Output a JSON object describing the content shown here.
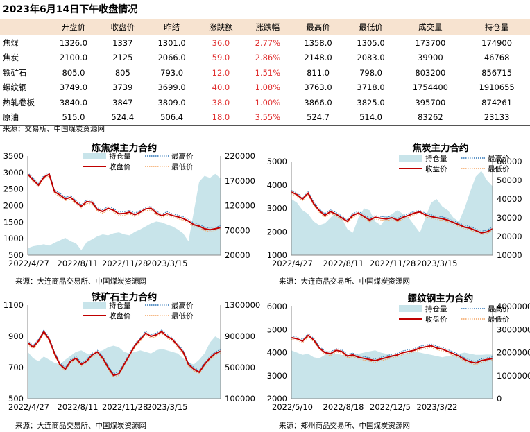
{
  "title": "2023年6月14日下午收盘情况",
  "table": {
    "headers": [
      "",
      "开盘价",
      "收盘价",
      "昨结",
      "涨跌额",
      "涨跌幅",
      "最高价",
      "最低价",
      "成交量",
      "持仓量"
    ],
    "rows": [
      {
        "name": "焦煤",
        "open": "1326.0",
        "close": "1337",
        "prev": "1301.0",
        "chg": "36.0",
        "pct": "2.77%",
        "high": "1358.0",
        "low": "1305.0",
        "vol": "173700",
        "oi": "174900"
      },
      {
        "name": "焦炭",
        "open": "2100.0",
        "close": "2125",
        "prev": "2066.0",
        "chg": "59.0",
        "pct": "2.86%",
        "high": "2148.0",
        "low": "2083.0",
        "vol": "39900",
        "oi": "46768"
      },
      {
        "name": "铁矿石",
        "open": "805.0",
        "close": "805",
        "prev": "793.0",
        "chg": "12.0",
        "pct": "1.51%",
        "high": "811.0",
        "low": "798.0",
        "vol": "803200",
        "oi": "856715"
      },
      {
        "name": "螺纹钢",
        "open": "3749.0",
        "close": "3739",
        "prev": "3699.0",
        "chg": "40.0",
        "pct": "1.08%",
        "high": "3763.0",
        "low": "3718.0",
        "vol": "1754400",
        "oi": "1910655"
      },
      {
        "name": "热轧卷板",
        "open": "3840.0",
        "close": "3847",
        "prev": "3809.0",
        "chg": "38.0",
        "pct": "1.00%",
        "high": "3866.0",
        "low": "3825.0",
        "vol": "395700",
        "oi": "874261"
      },
      {
        "name": "原油",
        "open": "515.0",
        "close": "524.4",
        "prev": "506.4",
        "chg": "18.0",
        "pct": "3.55%",
        "high": "524.7",
        "low": "514.0",
        "vol": "83262",
        "oi": "23133"
      }
    ],
    "source": "来源：交易所、中国煤炭资源网"
  },
  "colors": {
    "oi_fill": "#c8e4ea",
    "close": "#c00000",
    "high": "#2e75b6",
    "low": "#f4a460",
    "change_red": "#e03030",
    "header_bg": "#f7e3d0"
  },
  "chart_data": [
    {
      "type": "line",
      "title": "炼焦煤主力合约",
      "source": "来源：大连商品交易所、中国煤炭资源网",
      "x_ticks": [
        "2022/4/27",
        "2022/8/11",
        "2022/11/28",
        "2023/3/15"
      ],
      "y_left": {
        "min": 500,
        "max": 3500,
        "ticks": [
          500,
          1000,
          1500,
          2000,
          2500,
          3000,
          3500
        ]
      },
      "y_right": {
        "min": 20000,
        "max": 220000,
        "ticks": [
          20000,
          70000,
          120000,
          170000,
          220000
        ]
      },
      "legend": [
        "持仓量",
        "最高价",
        "收盘价",
        "最低价"
      ],
      "series": [
        {
          "name": "收盘价",
          "axis": "left",
          "values": [
            2950,
            2780,
            2620,
            2860,
            2950,
            2420,
            2320,
            2200,
            2250,
            2100,
            1980,
            2120,
            2100,
            1880,
            1820,
            1920,
            1860,
            1750,
            1760,
            1800,
            1720,
            1800,
            1900,
            1920,
            1780,
            1690,
            1760,
            1700,
            1660,
            1610,
            1530,
            1420,
            1380,
            1300,
            1270,
            1300,
            1337
          ]
        },
        {
          "name": "持仓量",
          "axis": "right",
          "values": [
            34000,
            38000,
            40000,
            42000,
            39000,
            45000,
            50000,
            55000,
            48000,
            44000,
            30000,
            46000,
            52000,
            58000,
            62000,
            60000,
            64000,
            66000,
            62000,
            60000,
            67000,
            72000,
            78000,
            84000,
            88000,
            86000,
            82000,
            78000,
            72000,
            64000,
            48000,
            108000,
            168000,
            180000,
            176000,
            184000,
            174900
          ]
        }
      ]
    },
    {
      "type": "line",
      "title": "焦炭主力合约",
      "source": "来源：大连商品交易所、中国煤炭资源网",
      "x_ticks": [
        "2022/4/27",
        "2022/8/11",
        "2022/11/28",
        "2023/3/15"
      ],
      "y_left": {
        "min": 1000,
        "max": 5000,
        "ticks": [
          1000,
          2000,
          3000,
          4000,
          5000
        ]
      },
      "y_right": {
        "min": 10000,
        "max": 60000,
        "ticks": [
          10000,
          20000,
          30000,
          40000,
          50000,
          60000
        ]
      },
      "legend": [
        "持仓量",
        "最高价",
        "收盘价",
        "最低价"
      ],
      "series": [
        {
          "name": "收盘价",
          "axis": "left",
          "values": [
            3700,
            3580,
            3400,
            3650,
            3200,
            2900,
            2700,
            2860,
            2750,
            2600,
            2450,
            2700,
            2800,
            2650,
            2500,
            2620,
            2580,
            2550,
            2600,
            2500,
            2620,
            2700,
            2800,
            2850,
            2720,
            2650,
            2600,
            2560,
            2500,
            2400,
            2300,
            2200,
            2150,
            2050,
            1950,
            2000,
            2125
          ]
        },
        {
          "name": "持仓量",
          "axis": "right",
          "values": [
            40000,
            38000,
            34000,
            32000,
            28000,
            26000,
            27000,
            30000,
            33000,
            30000,
            24000,
            22000,
            30000,
            35000,
            34000,
            28000,
            26000,
            30000,
            32000,
            34000,
            32000,
            30000,
            26000,
            22000,
            30000,
            38000,
            40000,
            36000,
            34000,
            30000,
            28000,
            35000,
            44000,
            52000,
            55000,
            50000,
            46768
          ]
        }
      ]
    },
    {
      "type": "line",
      "title": "铁矿石主力合约",
      "source": "来源：大连商品交易所、中国煤炭资源网",
      "x_ticks": [
        "2022/4/27",
        "2022/8/11",
        "2022/11/28",
        "2023/3/15"
      ],
      "y_left": {
        "min": 500,
        "max": 1100,
        "ticks": [
          500,
          700,
          900,
          1100
        ]
      },
      "y_right": {
        "min": 100000,
        "max": 1300000,
        "ticks": [
          100000,
          500000,
          900000,
          1300000
        ]
      },
      "legend": [
        "持仓量",
        "最高价",
        "收盘价",
        "最低价"
      ],
      "series": [
        {
          "name": "收盘价",
          "axis": "left",
          "values": [
            860,
            830,
            870,
            930,
            880,
            790,
            720,
            690,
            740,
            760,
            720,
            740,
            780,
            800,
            760,
            700,
            650,
            660,
            720,
            780,
            840,
            880,
            920,
            900,
            910,
            930,
            900,
            880,
            840,
            800,
            720,
            690,
            670,
            720,
            760,
            790,
            805
          ]
        },
        {
          "name": "持仓量",
          "axis": "right",
          "values": [
            700000,
            620000,
            580000,
            640000,
            600000,
            560000,
            540000,
            600000,
            650000,
            700000,
            720000,
            680000,
            660000,
            700000,
            720000,
            760000,
            780000,
            760000,
            700000,
            680000,
            700000,
            720000,
            700000,
            680000,
            720000,
            740000,
            720000,
            700000,
            680000,
            620000,
            560000,
            540000,
            600000,
            680000,
            820000,
            900000,
            856715
          ]
        }
      ]
    },
    {
      "type": "line",
      "title": "螺纹钢主力合约",
      "source": "来源：郑州商品交易所、中国煤炭资源网",
      "x_ticks": [
        "2022/5/10",
        "2022/8/18",
        "2022/12/5",
        "2023/3/22"
      ],
      "y_left": {
        "min": 2000,
        "max": 6000,
        "ticks": [
          2000,
          3000,
          4000,
          5000,
          6000
        ]
      },
      "y_right": {
        "min": 0,
        "max": 4000000,
        "ticks": [
          0,
          1000000,
          2000000,
          3000000,
          4000000
        ]
      },
      "legend": [
        "持仓量",
        "最高价",
        "收盘价",
        "最低价"
      ],
      "series": [
        {
          "name": "收盘价",
          "axis": "left",
          "values": [
            4650,
            4600,
            4500,
            4750,
            4550,
            4200,
            4000,
            3950,
            4100,
            4050,
            3850,
            3900,
            3800,
            3750,
            3700,
            3650,
            3720,
            3780,
            3850,
            3900,
            4000,
            4050,
            4100,
            4200,
            4250,
            4300,
            4200,
            4150,
            4050,
            3950,
            3850,
            3700,
            3600,
            3550,
            3650,
            3700,
            3739
          ]
        },
        {
          "name": "持仓量",
          "axis": "right",
          "values": [
            2100000,
            2000000,
            1900000,
            1950000,
            1800000,
            1750000,
            1900000,
            2000000,
            1950000,
            1900000,
            1850000,
            1900000,
            1950000,
            2000000,
            2050000,
            2100000,
            2000000,
            1950000,
            1900000,
            1850000,
            1950000,
            2000000,
            2050000,
            2000000,
            1950000,
            1900000,
            1850000,
            1800000,
            1850000,
            1900000,
            1950000,
            2000000,
            1950000,
            1900000,
            1900000,
            1920000,
            1910655
          ]
        }
      ]
    }
  ]
}
